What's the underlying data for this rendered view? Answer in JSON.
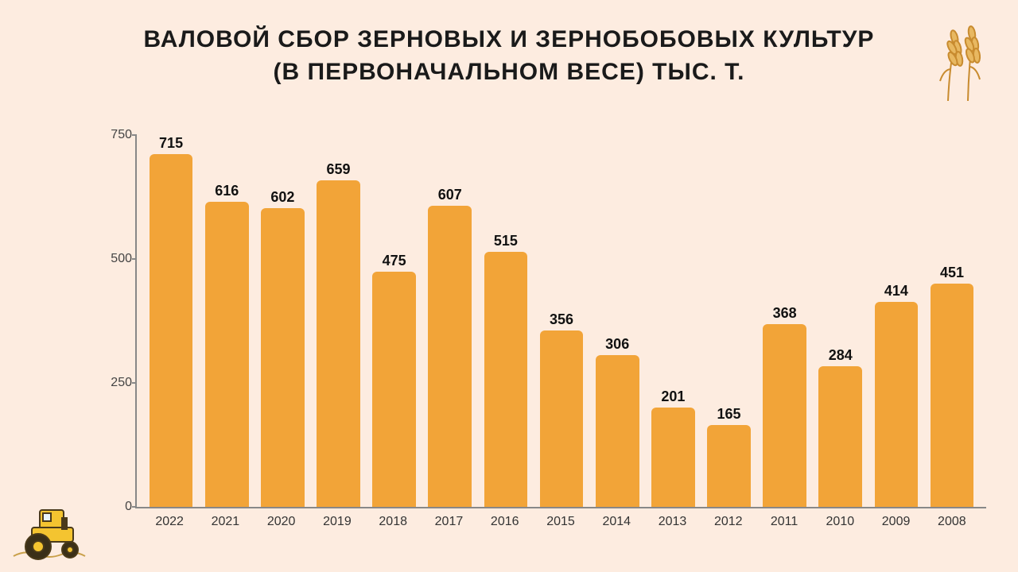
{
  "title_line1": "Валовой сбор зерновых и зернобобовых культур",
  "title_line2": "(в первоначальном весе) тыс. т.",
  "title_fontsize": 30,
  "title_color": "#1a1a1a",
  "background_color": "#fdece0",
  "chart": {
    "type": "bar",
    "categories": [
      "2022",
      "2021",
      "2020",
      "2019",
      "2018",
      "2017",
      "2016",
      "2015",
      "2014",
      "2013",
      "2012",
      "2011",
      "2010",
      "2009",
      "2008"
    ],
    "values": [
      715,
      616,
      602,
      659,
      475,
      607,
      515,
      356,
      306,
      201,
      165,
      368,
      284,
      414,
      451
    ],
    "bar_color": "#f2a438",
    "bar_border_radius": 6,
    "bar_width_pct": 78,
    "value_label_fontsize": 18,
    "value_label_color": "#111111",
    "xaxis_label_fontsize": 16,
    "xaxis_label_color": "#333333",
    "yaxis_label_fontsize": 16,
    "yaxis_label_color": "#444444",
    "axis_color": "#888888",
    "ylim": [
      0,
      750
    ],
    "ytick_step": 250,
    "yticks": [
      0,
      250,
      500,
      750
    ]
  },
  "icons": {
    "wheat": "wheat-icon",
    "tractor": "tractor-icon"
  }
}
